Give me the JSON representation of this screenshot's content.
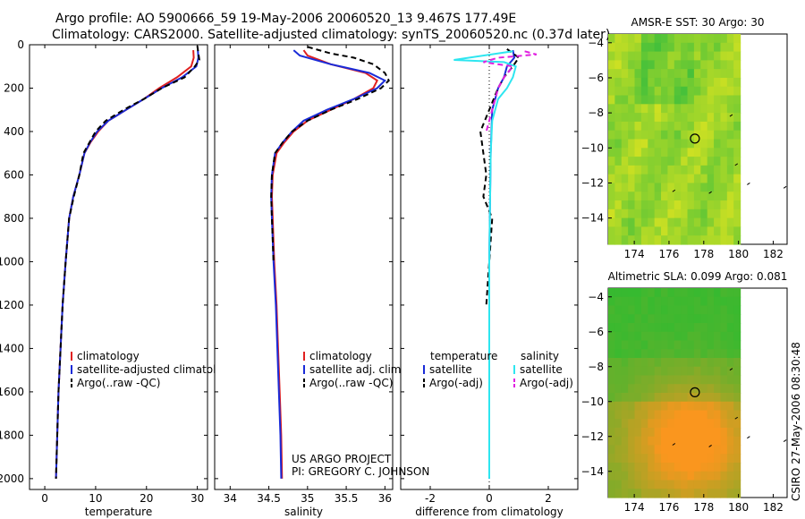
{
  "title_line1": "Argo profile: AO 5900666_59 19-May-2006 20060520_13 9.467S 177.49E",
  "title_line2": "Climatology: CARS2000. Satellite-adjusted climatology: synTS_20060520.nc (0.37d later)",
  "credit_line1": "US ARGO PROJECT",
  "credit_line2": "PI: GREGORY C. JOHNSON",
  "side_stamp": "CSIRO 27-May-2006 08:30:48",
  "colors": {
    "red": "#e02020",
    "blue": "#1a2bd8",
    "black": "#000000",
    "cyan": "#2ee6f0",
    "magenta": "#e020e0"
  },
  "chart_data": [
    {
      "type": "line",
      "xlabel": "temperature",
      "xlim": [
        -3,
        32
      ],
      "ylim": [
        2050,
        0
      ],
      "xticks": [
        0,
        10,
        20,
        30
      ],
      "yticks": [
        0,
        200,
        400,
        600,
        800,
        1000,
        1200,
        1400,
        1600,
        1800,
        2000
      ],
      "legend": [
        "climatology",
        "satellite-adjusted climatology",
        "Argo(..raw -QC)"
      ],
      "series": [
        {
          "name": "climatology",
          "color": "red",
          "dash": "",
          "points": [
            [
              29.2,
              25
            ],
            [
              29.3,
              60
            ],
            [
              28.8,
              100
            ],
            [
              26,
              150
            ],
            [
              22.5,
              200
            ],
            [
              19.5,
              250
            ],
            [
              16,
              300
            ],
            [
              12.5,
              350
            ],
            [
              10.5,
              400
            ],
            [
              9,
              450
            ],
            [
              7.8,
              500
            ],
            [
              6.8,
              600
            ],
            [
              5.6,
              700
            ],
            [
              4.8,
              800
            ],
            [
              4.1,
              1000
            ],
            [
              3.5,
              1200
            ],
            [
              3.1,
              1400
            ],
            [
              2.7,
              1600
            ],
            [
              2.45,
              1800
            ],
            [
              2.2,
              2000
            ]
          ]
        },
        {
          "name": "satellite-adjusted climatology",
          "color": "blue",
          "dash": "",
          "points": [
            [
              30.1,
              25
            ],
            [
              30.2,
              60
            ],
            [
              29.8,
              100
            ],
            [
              27,
              150
            ],
            [
              23,
              200
            ],
            [
              19.5,
              250
            ],
            [
              16,
              300
            ],
            [
              12.5,
              350
            ],
            [
              10.3,
              400
            ],
            [
              8.9,
              450
            ],
            [
              7.8,
              500
            ],
            [
              6.8,
              600
            ],
            [
              5.6,
              700
            ],
            [
              4.8,
              800
            ],
            [
              4.1,
              1000
            ],
            [
              3.5,
              1200
            ],
            [
              3.1,
              1400
            ],
            [
              2.7,
              1600
            ],
            [
              2.45,
              1800
            ],
            [
              2.2,
              2000
            ]
          ]
        },
        {
          "name": "Argo(..raw -QC)",
          "color": "black",
          "dash": "6,4",
          "points": [
            [
              30,
              5
            ],
            [
              30.2,
              40
            ],
            [
              30.4,
              70
            ],
            [
              29.5,
              100
            ],
            [
              27.5,
              150
            ],
            [
              23,
              200
            ],
            [
              19.5,
              250
            ],
            [
              15.5,
              300
            ],
            [
              12,
              350
            ],
            [
              10,
              400
            ],
            [
              8.8,
              450
            ],
            [
              7.6,
              500
            ],
            [
              6.8,
              600
            ],
            [
              5.7,
              700
            ],
            [
              4.8,
              800
            ],
            [
              4.1,
              1000
            ],
            [
              3.5,
              1200
            ],
            [
              3.1,
              1400
            ],
            [
              2.7,
              1600
            ],
            [
              2.45,
              1800
            ],
            [
              2.2,
              2000
            ]
          ]
        }
      ]
    },
    {
      "type": "line",
      "xlabel": "salinity",
      "xlim": [
        33.8,
        36.1
      ],
      "ylim": [
        2050,
        0
      ],
      "xticks": [
        34,
        34.5,
        35,
        35.5,
        36
      ],
      "xticklabels": [
        "34",
        "34.5",
        "35",
        "35.5",
        "36"
      ],
      "legend": [
        "climatology",
        "satellite adj. clim.",
        "Argo(..raw -QC)"
      ],
      "series": [
        {
          "name": "climatology",
          "color": "red",
          "dash": "",
          "points": [
            [
              34.95,
              25
            ],
            [
              35.0,
              50
            ],
            [
              35.3,
              90
            ],
            [
              35.75,
              130
            ],
            [
              35.9,
              165
            ],
            [
              35.85,
              200
            ],
            [
              35.6,
              250
            ],
            [
              35.3,
              300
            ],
            [
              35.0,
              350
            ],
            [
              34.82,
              400
            ],
            [
              34.7,
              450
            ],
            [
              34.6,
              500
            ],
            [
              34.55,
              600
            ],
            [
              34.54,
              700
            ],
            [
              34.55,
              800
            ],
            [
              34.57,
              1000
            ],
            [
              34.6,
              1200
            ],
            [
              34.62,
              1400
            ],
            [
              34.64,
              1600
            ],
            [
              34.66,
              1800
            ],
            [
              34.67,
              2000
            ]
          ]
        },
        {
          "name": "satellite adj. clim.",
          "color": "blue",
          "dash": "",
          "points": [
            [
              34.82,
              25
            ],
            [
              34.9,
              50
            ],
            [
              35.3,
              90
            ],
            [
              35.8,
              130
            ],
            [
              36.0,
              165
            ],
            [
              35.9,
              200
            ],
            [
              35.6,
              250
            ],
            [
              35.25,
              300
            ],
            [
              34.95,
              350
            ],
            [
              34.8,
              400
            ],
            [
              34.68,
              450
            ],
            [
              34.58,
              500
            ],
            [
              34.54,
              600
            ],
            [
              34.53,
              700
            ],
            [
              34.54,
              800
            ],
            [
              34.56,
              1000
            ],
            [
              34.59,
              1200
            ],
            [
              34.61,
              1400
            ],
            [
              34.63,
              1600
            ],
            [
              34.65,
              1800
            ],
            [
              34.66,
              2000
            ]
          ]
        },
        {
          "name": "Argo(..raw -QC)",
          "color": "black",
          "dash": "6,4",
          "points": [
            [
              35.0,
              10
            ],
            [
              35.3,
              40
            ],
            [
              35.6,
              60
            ],
            [
              35.85,
              90
            ],
            [
              36.0,
              130
            ],
            [
              36.05,
              165
            ],
            [
              35.95,
              200
            ],
            [
              35.65,
              250
            ],
            [
              35.3,
              300
            ],
            [
              35.0,
              350
            ],
            [
              34.8,
              400
            ],
            [
              34.68,
              450
            ],
            [
              34.58,
              500
            ],
            [
              34.54,
              600
            ],
            [
              34.53,
              700
            ],
            [
              34.54,
              800
            ],
            [
              34.56,
              1000
            ]
          ]
        }
      ]
    },
    {
      "type": "line",
      "xlabel": "difference from climatology",
      "xlim": [
        -3,
        3
      ],
      "ylim": [
        2050,
        0
      ],
      "xticks": [
        -2,
        0,
        2
      ],
      "legend_groups": [
        {
          "title": "temperature",
          "items": [
            "satellite",
            "Argo(-adj)"
          ]
        },
        {
          "title": "salinity",
          "items": [
            "satellite",
            "Argo(-adj)"
          ]
        }
      ],
      "series": [
        {
          "name": "temperature satellite",
          "color": "blue",
          "dash": "",
          "points": [
            [
              0.8,
              25
            ],
            [
              0.85,
              60
            ],
            [
              0.6,
              100
            ],
            [
              0.5,
              150
            ],
            [
              0.3,
              200
            ],
            [
              0.1,
              300
            ],
            [
              0.05,
              500
            ],
            [
              0.0,
              1000
            ],
            [
              0.0,
              2000
            ]
          ]
        },
        {
          "name": "temperature Argo(-adj)",
          "color": "black",
          "dash": "6,4",
          "points": [
            [
              0.6,
              20
            ],
            [
              1.0,
              60
            ],
            [
              0.8,
              100
            ],
            [
              0.5,
              150
            ],
            [
              0.3,
              200
            ],
            [
              0.0,
              300
            ],
            [
              -0.3,
              400
            ],
            [
              -0.2,
              500
            ],
            [
              -0.1,
              600
            ],
            [
              -0.2,
              700
            ],
            [
              0.1,
              800
            ],
            [
              0.0,
              1000
            ],
            [
              -0.1,
              1200
            ]
          ]
        },
        {
          "name": "salinity satellite",
          "color": "cyan",
          "dash": "",
          "points": [
            [
              0.8,
              30
            ],
            [
              -1.2,
              70
            ],
            [
              0.5,
              80
            ],
            [
              0.9,
              100
            ],
            [
              0.8,
              150
            ],
            [
              0.6,
              200
            ],
            [
              0.3,
              250
            ],
            [
              0.1,
              350
            ],
            [
              0.05,
              500
            ],
            [
              0.0,
              1000
            ],
            [
              0.0,
              2000
            ]
          ]
        },
        {
          "name": "salinity Argo(-adj)",
          "color": "magenta",
          "dash": "6,4",
          "points": [
            [
              1.2,
              30
            ],
            [
              1.6,
              45
            ],
            [
              0.3,
              60
            ],
            [
              -0.2,
              80
            ],
            [
              0.8,
              100
            ],
            [
              0.5,
              150
            ],
            [
              0.3,
              200
            ],
            [
              0.1,
              300
            ],
            [
              -0.1,
              400
            ]
          ]
        }
      ]
    },
    {
      "type": "heatmap",
      "title": "AMSR-E SST: 30 Argo: 30",
      "xlim": [
        172.5,
        182.8
      ],
      "ylim": [
        -15.5,
        -3.5
      ],
      "xticks": [
        174,
        176,
        178,
        180,
        182
      ],
      "yticks": [
        -4,
        -6,
        -8,
        -10,
        -12,
        -14
      ],
      "marker": [
        177.49,
        -9.467
      ]
    },
    {
      "type": "heatmap",
      "title": "Altimetric SLA: 0.099 Argo: 0.081",
      "xlim": [
        172.5,
        182.8
      ],
      "ylim": [
        -15.5,
        -3.5
      ],
      "xticks": [
        174,
        176,
        178,
        180,
        182
      ],
      "yticks": [
        -4,
        -6,
        -8,
        -10,
        -12,
        -14
      ],
      "marker": [
        177.49,
        -9.467
      ]
    }
  ]
}
